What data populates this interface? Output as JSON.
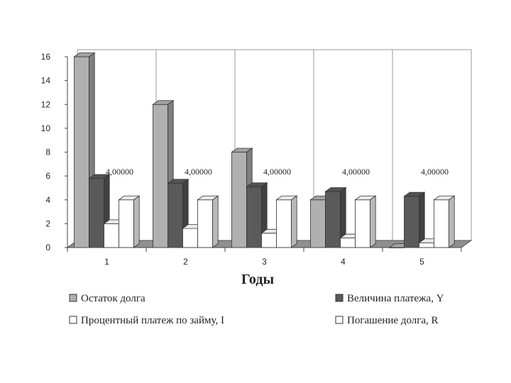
{
  "chart_data": {
    "type": "bar",
    "categories": [
      "1",
      "2",
      "3",
      "4",
      "5"
    ],
    "xlabel": "Годы",
    "ylabel": "",
    "ylim": [
      0,
      16
    ],
    "yticks": [
      "0",
      "2",
      "4",
      "6",
      "8",
      "10",
      "12",
      "14",
      "16"
    ],
    "grid": "vertical separators",
    "legend_position": "bottom",
    "series": [
      {
        "name": "Остаток долга",
        "values": [
          16,
          12,
          8,
          4,
          0
        ],
        "color": "#b0b0b0"
      },
      {
        "name": "Величина платежа, Y",
        "values": [
          5.8,
          5.4,
          5.1,
          4.7,
          4.3
        ],
        "color": "#5a5a5a"
      },
      {
        "name": "Процентный платеж по займу, I",
        "values": [
          2.0,
          1.6,
          1.2,
          0.8,
          0.4
        ],
        "color": "#ffffff"
      },
      {
        "name": "Погашение долга, R",
        "values": [
          4,
          4,
          4,
          4,
          4
        ],
        "color": "#ffffff"
      }
    ],
    "data_labels": [
      "4,00000",
      "4,00000",
      "4,00000",
      "4,00000",
      "4,00000"
    ]
  }
}
